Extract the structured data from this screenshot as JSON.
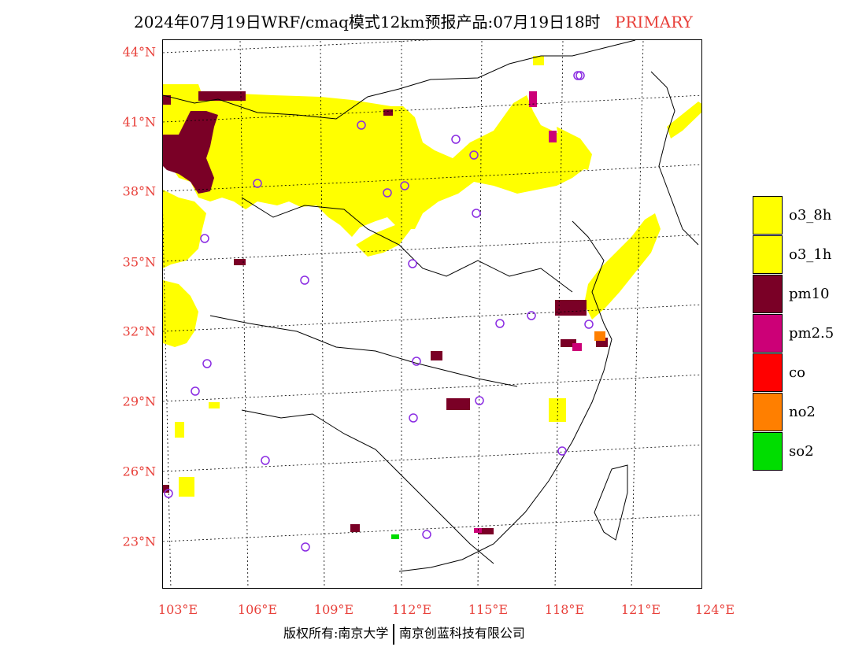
{
  "header": {
    "title": "2024年07月19日WRF/cmaq模式12km预报产品:07月19日18时",
    "tag": "PRIMARY"
  },
  "axes": {
    "lat_labels": [
      "44°N",
      "41°N",
      "38°N",
      "35°N",
      "32°N",
      "29°N",
      "26°N",
      "23°N"
    ],
    "lon_labels": [
      "103°E",
      "106°E",
      "109°E",
      "112°E",
      "115°E",
      "118°E",
      "121°E",
      "124°E"
    ]
  },
  "legend": [
    {
      "label": "o3_8h",
      "color": "#ffff00"
    },
    {
      "label": "o3_1h",
      "color": "#ffff00"
    },
    {
      "label": "pm10",
      "color": "#7a0026"
    },
    {
      "label": "pm2.5",
      "color": "#cc0077"
    },
    {
      "label": "co",
      "color": "#ff0000"
    },
    {
      "label": "no2",
      "color": "#ff7f00"
    },
    {
      "label": "so2",
      "color": "#00dd00"
    }
  ],
  "footer": {
    "copyright": "版权所有:南京大学",
    "company": "南京创蓝科技有限公司"
  },
  "colors": {
    "axis_label": "#e8403a",
    "station_marker": "#8a2be2",
    "o3": "#ffff00",
    "pm10": "#7a0026",
    "pm25": "#cc0077",
    "no2": "#ff7f00",
    "so2": "#00dd00"
  }
}
